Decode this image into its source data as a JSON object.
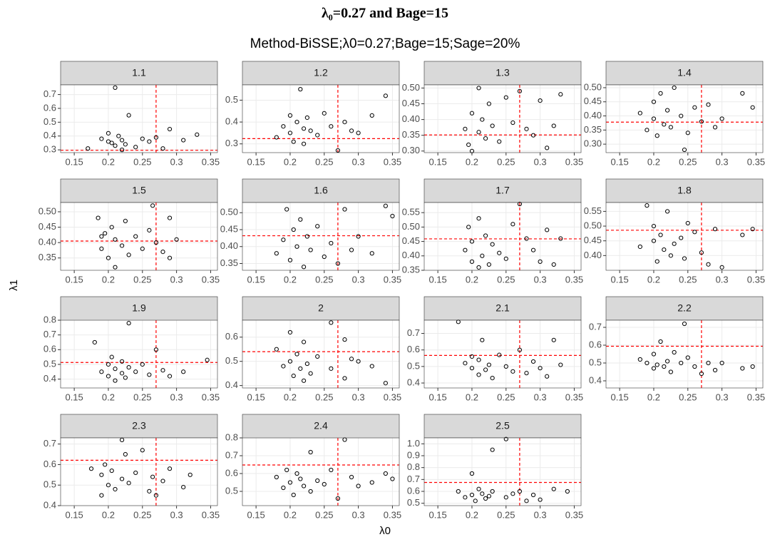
{
  "header": {
    "title": "λ₀=0.27 and Bage=15",
    "subtitle": "Method-BiSSE;λ0=0.27;Bage=15;Sage=20%"
  },
  "x_label": "λ0",
  "y_label": "λ1",
  "chart_data": [
    {
      "type": "scatter",
      "title": "1.1",
      "color": "#000000",
      "ref_color": "#ff0000",
      "grid": true,
      "xlim": [
        0.13,
        0.36
      ],
      "xticks": [
        0.15,
        0.2,
        0.25,
        0.3,
        0.35
      ],
      "ylim": [
        0.28,
        0.77
      ],
      "yticks": [
        0.3,
        0.4,
        0.5,
        0.6,
        0.7
      ],
      "vline": 0.27,
      "hline": 0.297,
      "x": [
        0.17,
        0.19,
        0.2,
        0.2,
        0.205,
        0.21,
        0.21,
        0.215,
        0.22,
        0.22,
        0.225,
        0.23,
        0.24,
        0.25,
        0.26,
        0.27,
        0.28,
        0.29,
        0.31,
        0.33
      ],
      "y": [
        0.31,
        0.38,
        0.42,
        0.36,
        0.35,
        0.75,
        0.33,
        0.4,
        0.37,
        0.3,
        0.34,
        0.55,
        0.32,
        0.38,
        0.36,
        0.39,
        0.31,
        0.45,
        0.37,
        0.41
      ]
    },
    {
      "type": "scatter",
      "title": "1.2",
      "color": "#000000",
      "ref_color": "#ff0000",
      "grid": true,
      "xlim": [
        0.13,
        0.36
      ],
      "xticks": [
        0.15,
        0.2,
        0.25,
        0.3,
        0.35
      ],
      "ylim": [
        0.26,
        0.57
      ],
      "yticks": [
        0.3,
        0.4,
        0.5
      ],
      "vline": 0.27,
      "hline": 0.324,
      "x": [
        0.18,
        0.19,
        0.2,
        0.2,
        0.205,
        0.21,
        0.215,
        0.22,
        0.22,
        0.225,
        0.23,
        0.24,
        0.25,
        0.26,
        0.27,
        0.28,
        0.29,
        0.3,
        0.32,
        0.34
      ],
      "y": [
        0.33,
        0.38,
        0.43,
        0.35,
        0.31,
        0.4,
        0.55,
        0.37,
        0.3,
        0.42,
        0.36,
        0.34,
        0.44,
        0.38,
        0.27,
        0.4,
        0.36,
        0.35,
        0.43,
        0.52
      ]
    },
    {
      "type": "scatter",
      "title": "1.3",
      "color": "#000000",
      "ref_color": "#ff0000",
      "grid": true,
      "xlim": [
        0.13,
        0.36
      ],
      "xticks": [
        0.15,
        0.2,
        0.25,
        0.3,
        0.35
      ],
      "ylim": [
        0.295,
        0.51
      ],
      "yticks": [
        {
          "value": 0.3,
          "label": "0.30"
        },
        0.35,
        {
          "value": 0.4,
          "label": "0.40"
        },
        0.45,
        {
          "value": 0.5,
          "label": "0.50"
        }
      ],
      "vline": 0.27,
      "hline": 0.351,
      "x": [
        0.19,
        0.195,
        0.2,
        0.2,
        0.21,
        0.21,
        0.215,
        0.22,
        0.225,
        0.23,
        0.24,
        0.25,
        0.26,
        0.27,
        0.28,
        0.29,
        0.3,
        0.31,
        0.32,
        0.33
      ],
      "y": [
        0.37,
        0.32,
        0.42,
        0.3,
        0.5,
        0.36,
        0.4,
        0.34,
        0.45,
        0.38,
        0.33,
        0.47,
        0.39,
        0.49,
        0.37,
        0.35,
        0.46,
        0.31,
        0.38,
        0.48
      ]
    },
    {
      "type": "scatter",
      "title": "1.4",
      "color": "#000000",
      "ref_color": "#ff0000",
      "grid": true,
      "xlim": [
        0.13,
        0.36
      ],
      "xticks": [
        0.15,
        0.2,
        0.25,
        0.3,
        0.35
      ],
      "ylim": [
        0.27,
        0.51
      ],
      "yticks": [
        {
          "value": 0.3,
          "label": "0.30"
        },
        0.35,
        {
          "value": 0.4,
          "label": "0.40"
        },
        0.45,
        {
          "value": 0.5,
          "label": "0.50"
        }
      ],
      "vline": 0.27,
      "hline": 0.378,
      "x": [
        0.18,
        0.19,
        0.2,
        0.2,
        0.205,
        0.21,
        0.215,
        0.22,
        0.225,
        0.23,
        0.24,
        0.245,
        0.25,
        0.26,
        0.27,
        0.28,
        0.29,
        0.3,
        0.33,
        0.345
      ],
      "y": [
        0.41,
        0.35,
        0.39,
        0.45,
        0.33,
        0.48,
        0.37,
        0.42,
        0.36,
        0.5,
        0.4,
        0.28,
        0.34,
        0.43,
        0.38,
        0.44,
        0.36,
        0.39,
        0.48,
        0.43
      ]
    },
    {
      "type": "scatter",
      "title": "1.5",
      "color": "#000000",
      "ref_color": "#ff0000",
      "grid": true,
      "xlim": [
        0.13,
        0.36
      ],
      "xticks": [
        0.15,
        0.2,
        0.25,
        0.3,
        0.35
      ],
      "ylim": [
        0.31,
        0.53
      ],
      "yticks": [
        0.35,
        {
          "value": 0.4,
          "label": "0.40"
        },
        0.45,
        {
          "value": 0.5,
          "label": "0.50"
        }
      ],
      "vline": 0.27,
      "hline": 0.405,
      "x": [
        0.185,
        0.19,
        0.19,
        0.195,
        0.2,
        0.205,
        0.21,
        0.21,
        0.22,
        0.225,
        0.23,
        0.24,
        0.25,
        0.26,
        0.265,
        0.27,
        0.28,
        0.29,
        0.29,
        0.3
      ],
      "y": [
        0.48,
        0.42,
        0.38,
        0.43,
        0.35,
        0.45,
        0.32,
        0.41,
        0.39,
        0.47,
        0.36,
        0.42,
        0.38,
        0.44,
        0.52,
        0.4,
        0.37,
        0.48,
        0.35,
        0.41
      ]
    },
    {
      "type": "scatter",
      "title": "1.6",
      "color": "#000000",
      "ref_color": "#ff0000",
      "grid": true,
      "xlim": [
        0.13,
        0.36
      ],
      "xticks": [
        0.15,
        0.2,
        0.25,
        0.3,
        0.35
      ],
      "ylim": [
        0.33,
        0.53
      ],
      "yticks": [
        0.35,
        {
          "value": 0.4,
          "label": "0.40"
        },
        0.45,
        {
          "value": 0.5,
          "label": "0.50"
        }
      ],
      "vline": 0.27,
      "hline": 0.432,
      "x": [
        0.18,
        0.19,
        0.195,
        0.2,
        0.205,
        0.21,
        0.215,
        0.22,
        0.225,
        0.23,
        0.24,
        0.25,
        0.26,
        0.27,
        0.28,
        0.29,
        0.3,
        0.32,
        0.34,
        0.35
      ],
      "y": [
        0.38,
        0.42,
        0.51,
        0.36,
        0.45,
        0.4,
        0.48,
        0.34,
        0.43,
        0.39,
        0.46,
        0.37,
        0.41,
        0.35,
        0.51,
        0.39,
        0.43,
        0.38,
        0.52,
        0.49
      ]
    },
    {
      "type": "scatter",
      "title": "1.7",
      "color": "#000000",
      "ref_color": "#ff0000",
      "grid": true,
      "xlim": [
        0.13,
        0.36
      ],
      "xticks": [
        0.15,
        0.2,
        0.25,
        0.3,
        0.35
      ],
      "ylim": [
        0.35,
        0.585
      ],
      "yticks": [
        0.35,
        {
          "value": 0.4,
          "label": "0.40"
        },
        0.45,
        {
          "value": 0.5,
          "label": "0.50"
        },
        0.55
      ],
      "vline": 0.27,
      "hline": 0.459,
      "x": [
        0.19,
        0.195,
        0.2,
        0.2,
        0.21,
        0.21,
        0.215,
        0.22,
        0.225,
        0.23,
        0.24,
        0.25,
        0.26,
        0.27,
        0.28,
        0.29,
        0.3,
        0.31,
        0.32,
        0.33
      ],
      "y": [
        0.42,
        0.5,
        0.38,
        0.45,
        0.36,
        0.53,
        0.4,
        0.47,
        0.37,
        0.44,
        0.41,
        0.39,
        0.51,
        0.58,
        0.46,
        0.42,
        0.38,
        0.49,
        0.37,
        0.46
      ]
    },
    {
      "type": "scatter",
      "title": "1.8",
      "color": "#000000",
      "ref_color": "#ff0000",
      "grid": true,
      "xlim": [
        0.13,
        0.36
      ],
      "xticks": [
        0.15,
        0.2,
        0.25,
        0.3,
        0.35
      ],
      "ylim": [
        0.35,
        0.58
      ],
      "yticks": [
        {
          "value": 0.4,
          "label": "0.40"
        },
        0.45,
        {
          "value": 0.5,
          "label": "0.50"
        },
        0.55
      ],
      "vline": 0.27,
      "hline": 0.486,
      "x": [
        0.18,
        0.19,
        0.2,
        0.2,
        0.205,
        0.21,
        0.215,
        0.22,
        0.225,
        0.23,
        0.24,
        0.245,
        0.25,
        0.26,
        0.27,
        0.28,
        0.29,
        0.3,
        0.33,
        0.345
      ],
      "y": [
        0.43,
        0.57,
        0.45,
        0.5,
        0.38,
        0.47,
        0.42,
        0.55,
        0.4,
        0.44,
        0.46,
        0.39,
        0.51,
        0.48,
        0.41,
        0.37,
        0.49,
        0.36,
        0.47,
        0.49
      ]
    },
    {
      "type": "scatter",
      "title": "1.9",
      "color": "#000000",
      "ref_color": "#ff0000",
      "grid": true,
      "xlim": [
        0.13,
        0.36
      ],
      "xticks": [
        0.15,
        0.2,
        0.25,
        0.3,
        0.35
      ],
      "ylim": [
        0.34,
        0.8
      ],
      "yticks": [
        0.4,
        0.5,
        0.6,
        0.7,
        0.8
      ],
      "vline": 0.27,
      "hline": 0.513,
      "x": [
        0.18,
        0.19,
        0.2,
        0.2,
        0.205,
        0.21,
        0.21,
        0.23,
        0.22,
        0.22,
        0.225,
        0.23,
        0.24,
        0.25,
        0.27,
        0.26,
        0.28,
        0.29,
        0.31,
        0.345
      ],
      "y": [
        0.65,
        0.45,
        0.5,
        0.42,
        0.55,
        0.47,
        0.39,
        0.78,
        0.44,
        0.52,
        0.41,
        0.48,
        0.45,
        0.5,
        0.6,
        0.43,
        0.46,
        0.42,
        0.45,
        0.53
      ]
    },
    {
      "type": "scatter",
      "title": "2",
      "color": "#000000",
      "ref_color": "#ff0000",
      "grid": true,
      "xlim": [
        0.13,
        0.36
      ],
      "xticks": [
        0.15,
        0.2,
        0.25,
        0.3,
        0.35
      ],
      "ylim": [
        0.39,
        0.67
      ],
      "yticks": [
        0.4,
        0.5,
        0.6
      ],
      "vline": 0.27,
      "hline": 0.54,
      "x": [
        0.18,
        0.19,
        0.2,
        0.2,
        0.205,
        0.21,
        0.215,
        0.22,
        0.22,
        0.225,
        0.23,
        0.24,
        0.26,
        0.26,
        0.28,
        0.28,
        0.29,
        0.3,
        0.32,
        0.34
      ],
      "y": [
        0.55,
        0.48,
        0.5,
        0.62,
        0.44,
        0.53,
        0.47,
        0.42,
        0.58,
        0.49,
        0.45,
        0.52,
        0.66,
        0.47,
        0.59,
        0.43,
        0.51,
        0.5,
        0.48,
        0.41
      ]
    },
    {
      "type": "scatter",
      "title": "2.1",
      "color": "#000000",
      "ref_color": "#ff0000",
      "grid": true,
      "xlim": [
        0.13,
        0.36
      ],
      "xticks": [
        0.15,
        0.2,
        0.25,
        0.3,
        0.35
      ],
      "ylim": [
        0.37,
        0.78
      ],
      "yticks": [
        0.4,
        0.5,
        0.6,
        0.7
      ],
      "vline": 0.27,
      "hline": 0.567,
      "x": [
        0.19,
        0.18,
        0.2,
        0.2,
        0.21,
        0.21,
        0.215,
        0.22,
        0.225,
        0.23,
        0.24,
        0.25,
        0.26,
        0.27,
        0.28,
        0.29,
        0.3,
        0.31,
        0.32,
        0.33
      ],
      "y": [
        0.52,
        0.77,
        0.49,
        0.56,
        0.45,
        0.54,
        0.66,
        0.48,
        0.51,
        0.43,
        0.57,
        0.5,
        0.47,
        0.6,
        0.46,
        0.53,
        0.49,
        0.44,
        0.66,
        0.51
      ]
    },
    {
      "type": "scatter",
      "title": "2.2",
      "color": "#000000",
      "ref_color": "#ff0000",
      "grid": true,
      "xlim": [
        0.13,
        0.36
      ],
      "xticks": [
        0.15,
        0.2,
        0.25,
        0.3,
        0.35
      ],
      "ylim": [
        0.36,
        0.74
      ],
      "yticks": [
        0.4,
        0.5,
        0.6,
        0.7
      ],
      "vline": 0.27,
      "hline": 0.594,
      "x": [
        0.18,
        0.19,
        0.2,
        0.2,
        0.205,
        0.21,
        0.215,
        0.22,
        0.225,
        0.23,
        0.24,
        0.245,
        0.25,
        0.26,
        0.27,
        0.28,
        0.29,
        0.3,
        0.33,
        0.345
      ],
      "y": [
        0.52,
        0.5,
        0.47,
        0.55,
        0.49,
        0.62,
        0.48,
        0.51,
        0.45,
        0.56,
        0.5,
        0.72,
        0.53,
        0.48,
        0.44,
        0.5,
        0.46,
        0.5,
        0.47,
        0.48
      ]
    },
    {
      "type": "scatter",
      "title": "2.3",
      "color": "#000000",
      "ref_color": "#ff0000",
      "grid": true,
      "xlim": [
        0.13,
        0.36
      ],
      "xticks": [
        0.15,
        0.2,
        0.25,
        0.3,
        0.35
      ],
      "ylim": [
        0.4,
        0.73
      ],
      "yticks": [
        0.4,
        0.5,
        0.6,
        0.7
      ],
      "vline": 0.27,
      "hline": 0.621,
      "x": [
        0.175,
        0.19,
        0.19,
        0.195,
        0.2,
        0.205,
        0.22,
        0.21,
        0.22,
        0.225,
        0.23,
        0.24,
        0.25,
        0.26,
        0.265,
        0.27,
        0.28,
        0.29,
        0.31,
        0.32
      ],
      "y": [
        0.58,
        0.55,
        0.45,
        0.6,
        0.5,
        0.57,
        0.72,
        0.48,
        0.53,
        0.65,
        0.51,
        0.56,
        0.67,
        0.47,
        0.54,
        0.45,
        0.52,
        0.58,
        0.49,
        0.55
      ]
    },
    {
      "type": "scatter",
      "title": "2.4",
      "color": "#000000",
      "ref_color": "#ff0000",
      "grid": true,
      "xlim": [
        0.13,
        0.36
      ],
      "xticks": [
        0.15,
        0.2,
        0.25,
        0.3,
        0.35
      ],
      "ylim": [
        0.42,
        0.8
      ],
      "yticks": [
        0.5,
        0.6,
        0.7,
        0.8
      ],
      "vline": 0.27,
      "hline": 0.648,
      "x": [
        0.18,
        0.19,
        0.195,
        0.2,
        0.205,
        0.21,
        0.215,
        0.22,
        0.23,
        0.23,
        0.24,
        0.25,
        0.26,
        0.27,
        0.28,
        0.29,
        0.3,
        0.32,
        0.34,
        0.35
      ],
      "y": [
        0.58,
        0.52,
        0.62,
        0.55,
        0.48,
        0.6,
        0.57,
        0.53,
        0.72,
        0.5,
        0.56,
        0.54,
        0.62,
        0.46,
        0.79,
        0.58,
        0.53,
        0.55,
        0.6,
        0.57
      ]
    },
    {
      "type": "scatter",
      "title": "2.5",
      "color": "#000000",
      "ref_color": "#ff0000",
      "grid": true,
      "xlim": [
        0.13,
        0.36
      ],
      "xticks": [
        0.15,
        0.2,
        0.25,
        0.3,
        0.35
      ],
      "ylim": [
        0.48,
        1.05
      ],
      "yticks": [
        0.5,
        0.6,
        0.7,
        0.8,
        0.9,
        {
          "value": 1,
          "label": "1.0"
        }
      ],
      "vline": 0.27,
      "hline": 0.675,
      "x": [
        0.18,
        0.19,
        0.2,
        0.2,
        0.205,
        0.21,
        0.215,
        0.22,
        0.23,
        0.225,
        0.23,
        0.25,
        0.25,
        0.26,
        0.27,
        0.28,
        0.29,
        0.3,
        0.32,
        0.34
      ],
      "y": [
        0.6,
        0.55,
        0.57,
        0.75,
        0.52,
        0.62,
        0.58,
        0.54,
        0.95,
        0.56,
        0.6,
        1.04,
        0.55,
        0.58,
        0.6,
        0.52,
        0.57,
        0.53,
        0.62,
        0.6
      ]
    }
  ]
}
